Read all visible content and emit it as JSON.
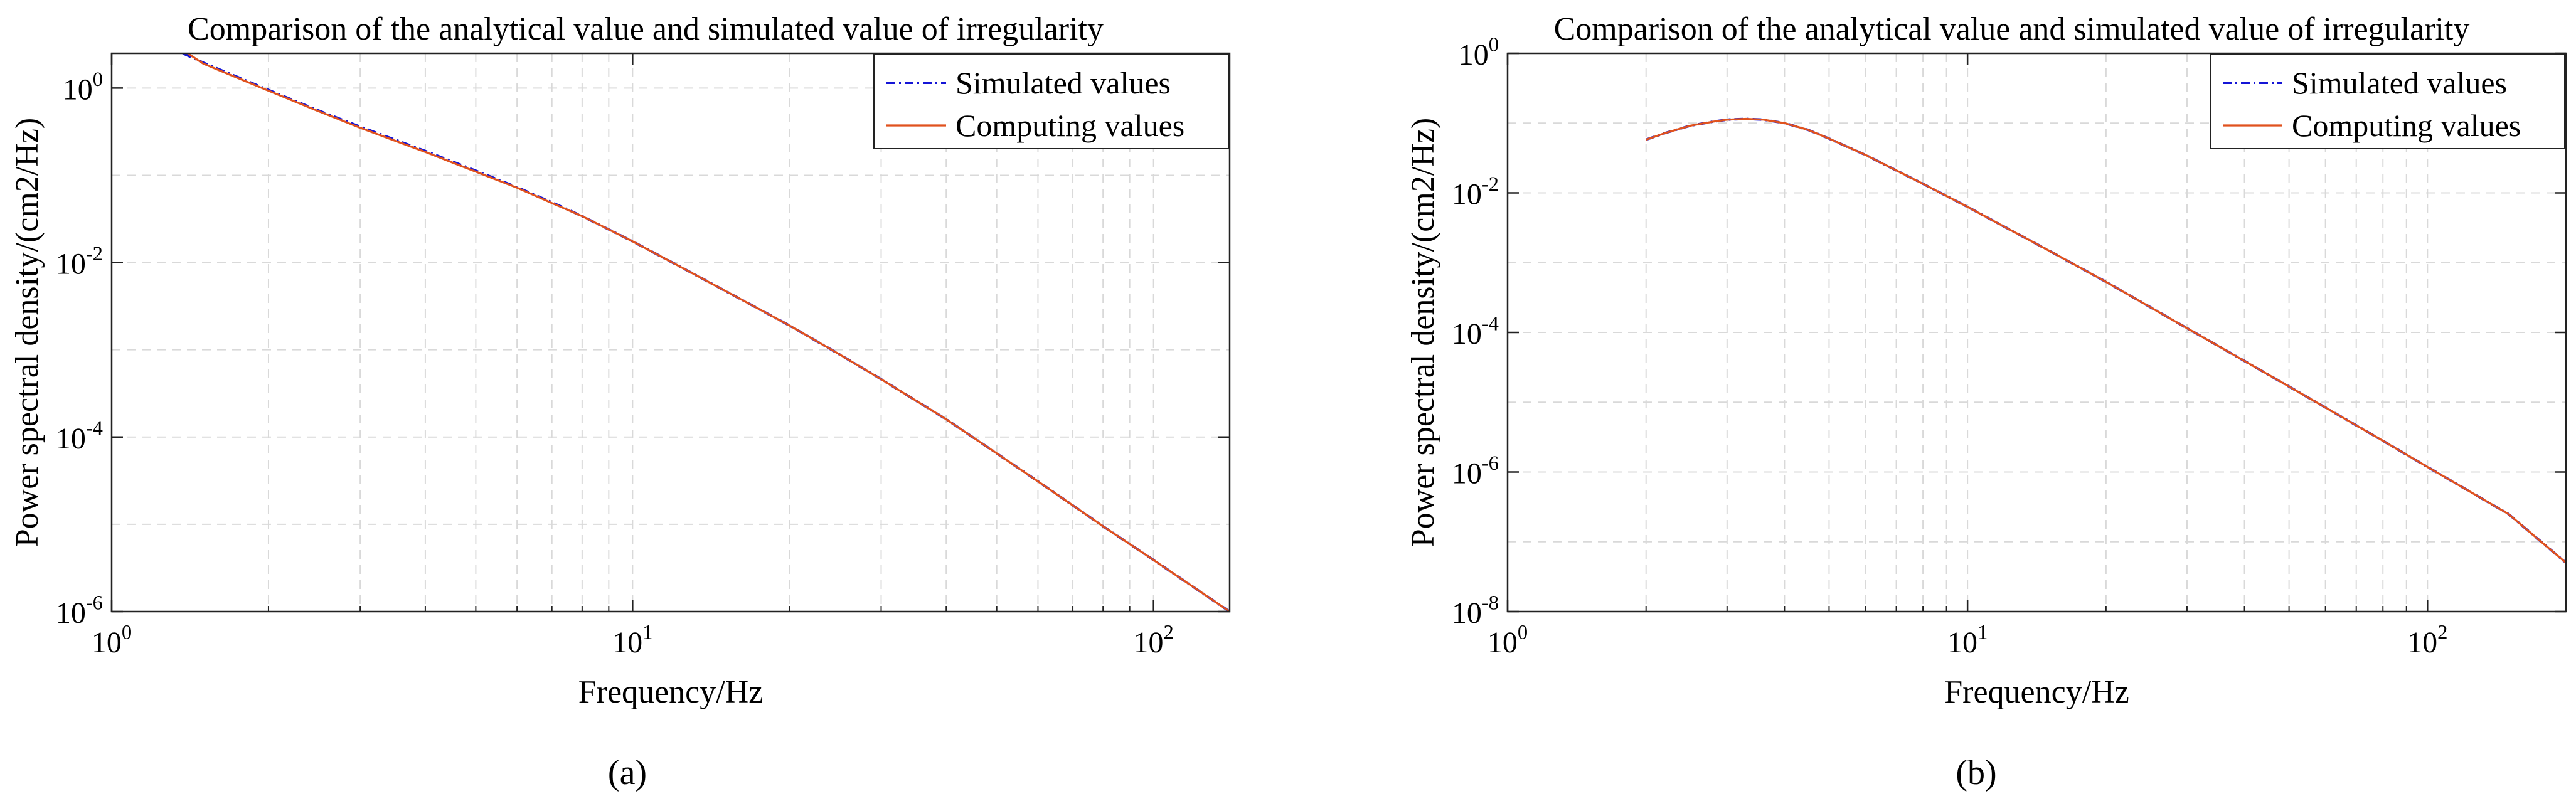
{
  "figure": {
    "colors": {
      "simulated": "#1515d6",
      "computing": "#e0521e",
      "grid": "#d9d9d9",
      "axis": "#222222"
    },
    "panel_labels": [
      "(a)",
      "(b)"
    ]
  },
  "chart_data": [
    {
      "type": "line",
      "panel_label": "(a)",
      "title": "Comparison of the  analytical value and simulated value of irregularity",
      "xlabel": "Frequency/Hz",
      "ylabel": "Power spectral density/(cm2/Hz)",
      "xscale": "log",
      "yscale": "log",
      "xlim": [
        1,
        140
      ],
      "ylim": [
        1e-06,
        2.5
      ],
      "xticks": [
        1,
        10,
        100
      ],
      "xtick_labels": [
        [
          "10",
          "0"
        ],
        [
          "10",
          "1"
        ],
        [
          "10",
          "2"
        ]
      ],
      "yticks": [
        1e-06,
        0.0001,
        0.01,
        1
      ],
      "ytick_labels": [
        [
          "10",
          "-6"
        ],
        [
          "10",
          "-4"
        ],
        [
          "10",
          "-2"
        ],
        [
          "10",
          "0"
        ]
      ],
      "grid": true,
      "legend_position": "top-right",
      "series": [
        {
          "name": "Simulated values",
          "style": "dashdot",
          "x": [
            1.37,
            1.5,
            2,
            2.5,
            3,
            4,
            5,
            6,
            7,
            8,
            10,
            12,
            15,
            20,
            25,
            30,
            40,
            50,
            60,
            80,
            100,
            140
          ],
          "y": [
            2.5,
            1.95,
            0.95,
            0.55,
            0.36,
            0.19,
            0.113,
            0.073,
            0.049,
            0.034,
            0.0175,
            0.0098,
            0.0048,
            0.0019,
            0.00088,
            0.00046,
            0.00016,
            6.5e-05,
            3.1e-05,
            9.5e-06,
            3.9e-06,
            1e-06
          ]
        },
        {
          "name": "Computing values",
          "style": "solid",
          "x": [
            1.4,
            1.5,
            2,
            2.5,
            3,
            4,
            5,
            6,
            7,
            8,
            10,
            12,
            15,
            20,
            25,
            30,
            40,
            50,
            60,
            80,
            100,
            140
          ],
          "y": [
            2.5,
            1.9,
            0.93,
            0.54,
            0.35,
            0.185,
            0.11,
            0.072,
            0.048,
            0.034,
            0.0175,
            0.0098,
            0.0048,
            0.0019,
            0.00088,
            0.00046,
            0.00016,
            6.5e-05,
            3.1e-05,
            9.5e-06,
            3.9e-06,
            1e-06
          ]
        }
      ]
    },
    {
      "type": "line",
      "panel_label": "(b)",
      "title": "Comparison of the  analytical value and simulated value of irregularity",
      "xlabel": "Frequency/Hz",
      "ylabel": "Power spectral density/(cm2/Hz)",
      "xscale": "log",
      "yscale": "log",
      "xlim": [
        1,
        200
      ],
      "ylim": [
        1e-08,
        1
      ],
      "xticks": [
        1,
        10,
        100
      ],
      "xtick_labels": [
        [
          "10",
          "0"
        ],
        [
          "10",
          "1"
        ],
        [
          "10",
          "2"
        ]
      ],
      "yticks": [
        1e-08,
        1e-06,
        0.0001,
        0.01,
        1
      ],
      "ytick_labels": [
        [
          "10",
          "-8"
        ],
        [
          "10",
          "-6"
        ],
        [
          "10",
          "-4"
        ],
        [
          "10",
          "-2"
        ],
        [
          "10",
          "0"
        ]
      ],
      "grid": true,
      "legend_position": "top-right",
      "series": [
        {
          "name": "Simulated values",
          "style": "dashdot",
          "x": [
            2,
            2.2,
            2.5,
            2.8,
            3,
            3.3,
            3.6,
            4,
            4.5,
            5,
            6,
            7,
            8,
            10,
            12,
            15,
            20,
            30,
            40,
            60,
            80,
            100,
            150,
            200
          ],
          "y": [
            0.058,
            0.072,
            0.092,
            0.105,
            0.112,
            0.115,
            0.112,
            0.1,
            0.08,
            0.06,
            0.035,
            0.021,
            0.0135,
            0.0063,
            0.0033,
            0.0015,
            0.00053,
            0.000115,
            3.9e-05,
            8.4e-06,
            2.8e-06,
            1.18e-06,
            2.5e-07,
            5e-08
          ]
        },
        {
          "name": "Computing values",
          "style": "solid",
          "x": [
            2,
            2.2,
            2.5,
            2.8,
            3,
            3.3,
            3.6,
            4,
            4.5,
            5,
            6,
            7,
            8,
            10,
            12,
            15,
            20,
            30,
            40,
            60,
            80,
            100,
            150,
            200
          ],
          "y": [
            0.058,
            0.072,
            0.092,
            0.105,
            0.112,
            0.115,
            0.112,
            0.1,
            0.08,
            0.06,
            0.035,
            0.021,
            0.0135,
            0.0063,
            0.0033,
            0.0015,
            0.00053,
            0.000115,
            3.9e-05,
            8.4e-06,
            2.8e-06,
            1.18e-06,
            2.5e-07,
            5e-08
          ]
        }
      ]
    }
  ]
}
